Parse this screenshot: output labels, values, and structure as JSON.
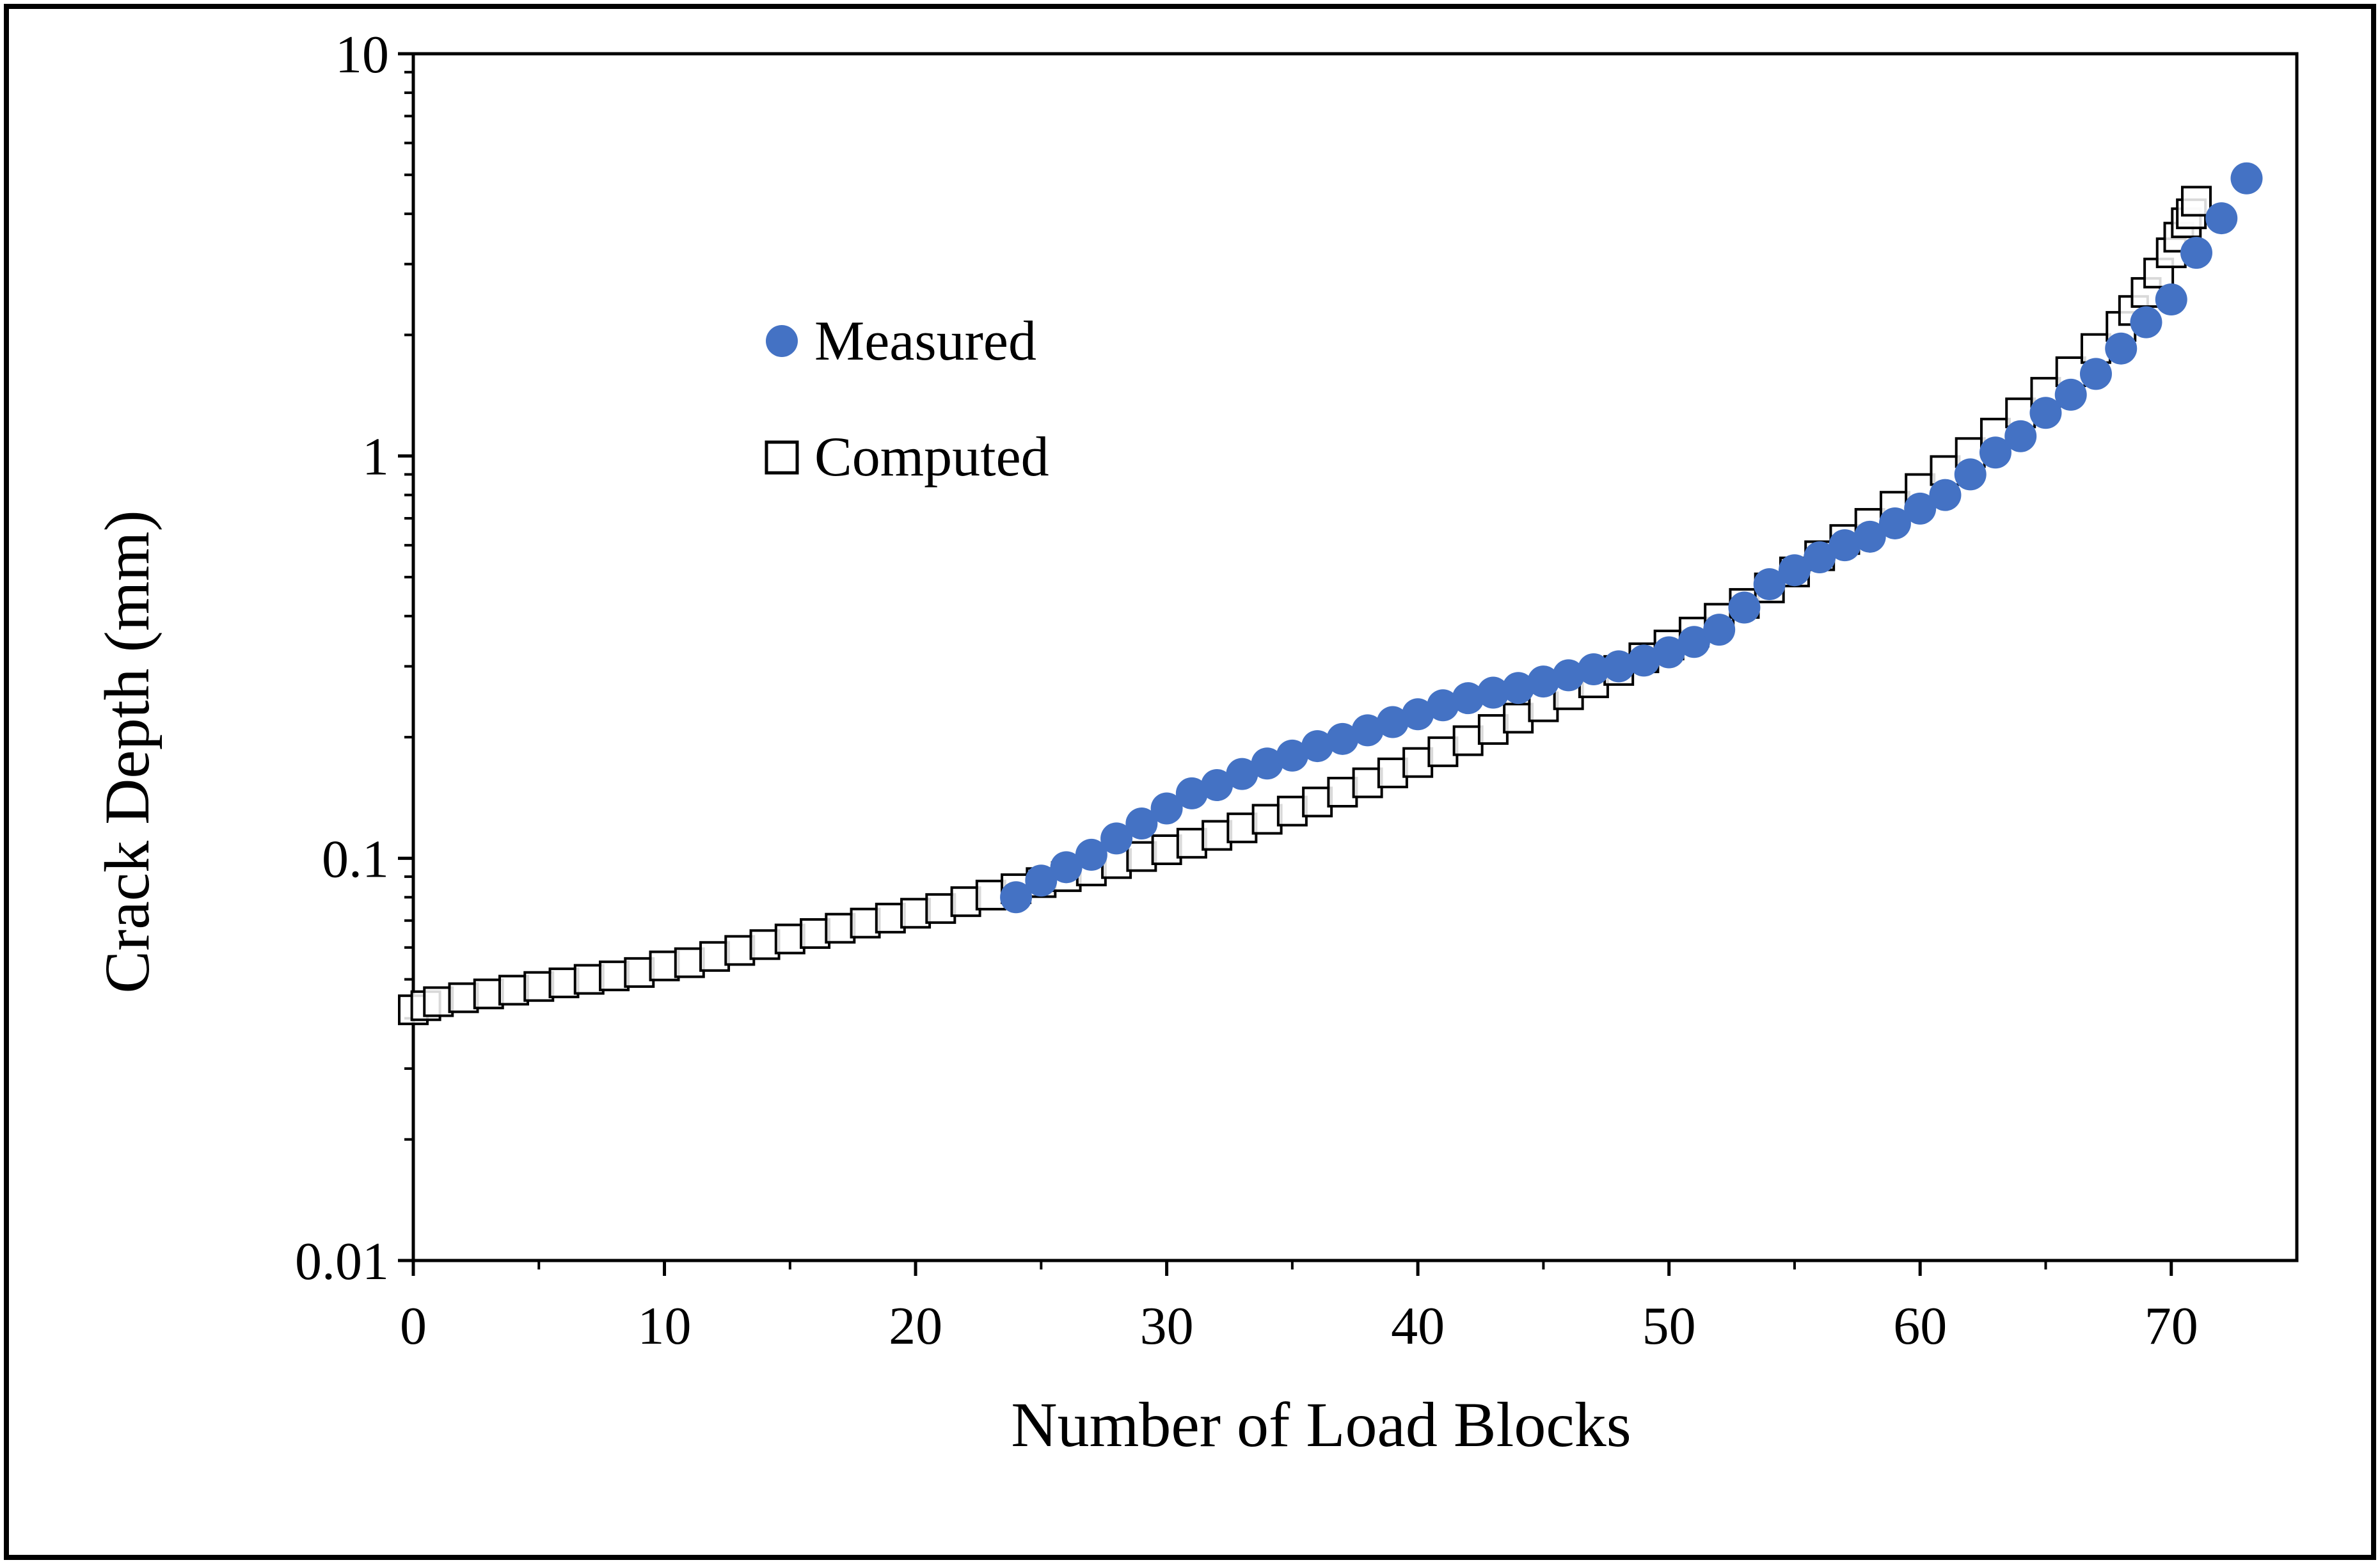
{
  "chart_data": {
    "type": "scatter",
    "xlabel": "Number of Load Blocks",
    "ylabel": "Crack Depth (mm)",
    "xscale": "linear",
    "yscale": "log",
    "xlim": [
      0,
      75
    ],
    "ylim": [
      0.01,
      10
    ],
    "xticks": [
      0,
      10,
      20,
      30,
      40,
      50,
      60,
      70
    ],
    "xtick_labels": [
      "0",
      "10",
      "20",
      "30",
      "40",
      "50",
      "60",
      "70"
    ],
    "yticks": [
      0.01,
      0.1,
      1,
      10
    ],
    "ytick_labels": [
      "0.01",
      "0.1",
      "1",
      "10"
    ],
    "grid": false,
    "legend_position": "upper-left-inside",
    "series": [
      {
        "name": "Measured",
        "marker": "circle",
        "color": "#4472C4",
        "x": [
          24,
          25,
          26,
          27,
          28,
          29,
          30,
          31,
          32,
          33,
          34,
          35,
          36,
          37,
          38,
          39,
          40,
          41,
          42,
          43,
          44,
          45,
          46,
          47,
          48,
          49,
          50,
          51,
          52,
          53,
          54,
          55,
          56,
          57,
          58,
          59,
          60,
          61,
          62,
          63,
          64,
          65,
          66,
          67,
          68,
          69,
          70,
          71,
          72,
          73
        ],
        "y": [
          0.08,
          0.088,
          0.095,
          0.102,
          0.112,
          0.122,
          0.133,
          0.145,
          0.152,
          0.162,
          0.172,
          0.18,
          0.19,
          0.198,
          0.208,
          0.218,
          0.228,
          0.24,
          0.25,
          0.258,
          0.265,
          0.275,
          0.285,
          0.295,
          0.3,
          0.31,
          0.325,
          0.345,
          0.37,
          0.42,
          0.48,
          0.52,
          0.56,
          0.6,
          0.63,
          0.68,
          0.74,
          0.8,
          0.9,
          1.02,
          1.12,
          1.28,
          1.42,
          1.6,
          1.85,
          2.15,
          2.45,
          3.2,
          3.9,
          4.9
        ]
      },
      {
        "name": "Computed",
        "marker": "square",
        "color": "#000000",
        "x": [
          0,
          0.5,
          1,
          2,
          3,
          4,
          5,
          6,
          7,
          8,
          9,
          10,
          11,
          12,
          13,
          14,
          15,
          16,
          17,
          18,
          19,
          20,
          21,
          22,
          23,
          24,
          25,
          26,
          27,
          28,
          29,
          30,
          31,
          32,
          33,
          34,
          35,
          36,
          37,
          38,
          39,
          40,
          41,
          42,
          43,
          44,
          45,
          46,
          47,
          48,
          49,
          50,
          51,
          52,
          53,
          54,
          55,
          56,
          57,
          58,
          59,
          60,
          61,
          62,
          63,
          64,
          65,
          66,
          67,
          68,
          68.5,
          69,
          69.5,
          70,
          70.3,
          70.6,
          70.8,
          71
        ],
        "y": [
          0.042,
          0.043,
          0.044,
          0.045,
          0.046,
          0.047,
          0.048,
          0.049,
          0.05,
          0.051,
          0.052,
          0.054,
          0.055,
          0.057,
          0.059,
          0.061,
          0.063,
          0.065,
          0.067,
          0.069,
          0.071,
          0.073,
          0.075,
          0.078,
          0.081,
          0.084,
          0.087,
          0.09,
          0.093,
          0.097,
          0.101,
          0.105,
          0.109,
          0.114,
          0.119,
          0.125,
          0.131,
          0.138,
          0.146,
          0.154,
          0.163,
          0.173,
          0.184,
          0.196,
          0.209,
          0.223,
          0.238,
          0.255,
          0.273,
          0.293,
          0.315,
          0.339,
          0.365,
          0.395,
          0.43,
          0.47,
          0.515,
          0.565,
          0.62,
          0.68,
          0.75,
          0.83,
          0.92,
          1.02,
          1.14,
          1.28,
          1.44,
          1.62,
          1.85,
          2.1,
          2.3,
          2.55,
          2.85,
          3.2,
          3.5,
          3.8,
          4.0,
          4.3
        ]
      }
    ]
  },
  "colors": {
    "measured": "#4472C4",
    "computed_stroke": "#000000",
    "axis": "#000000",
    "border": "#000000",
    "background": "#ffffff"
  }
}
